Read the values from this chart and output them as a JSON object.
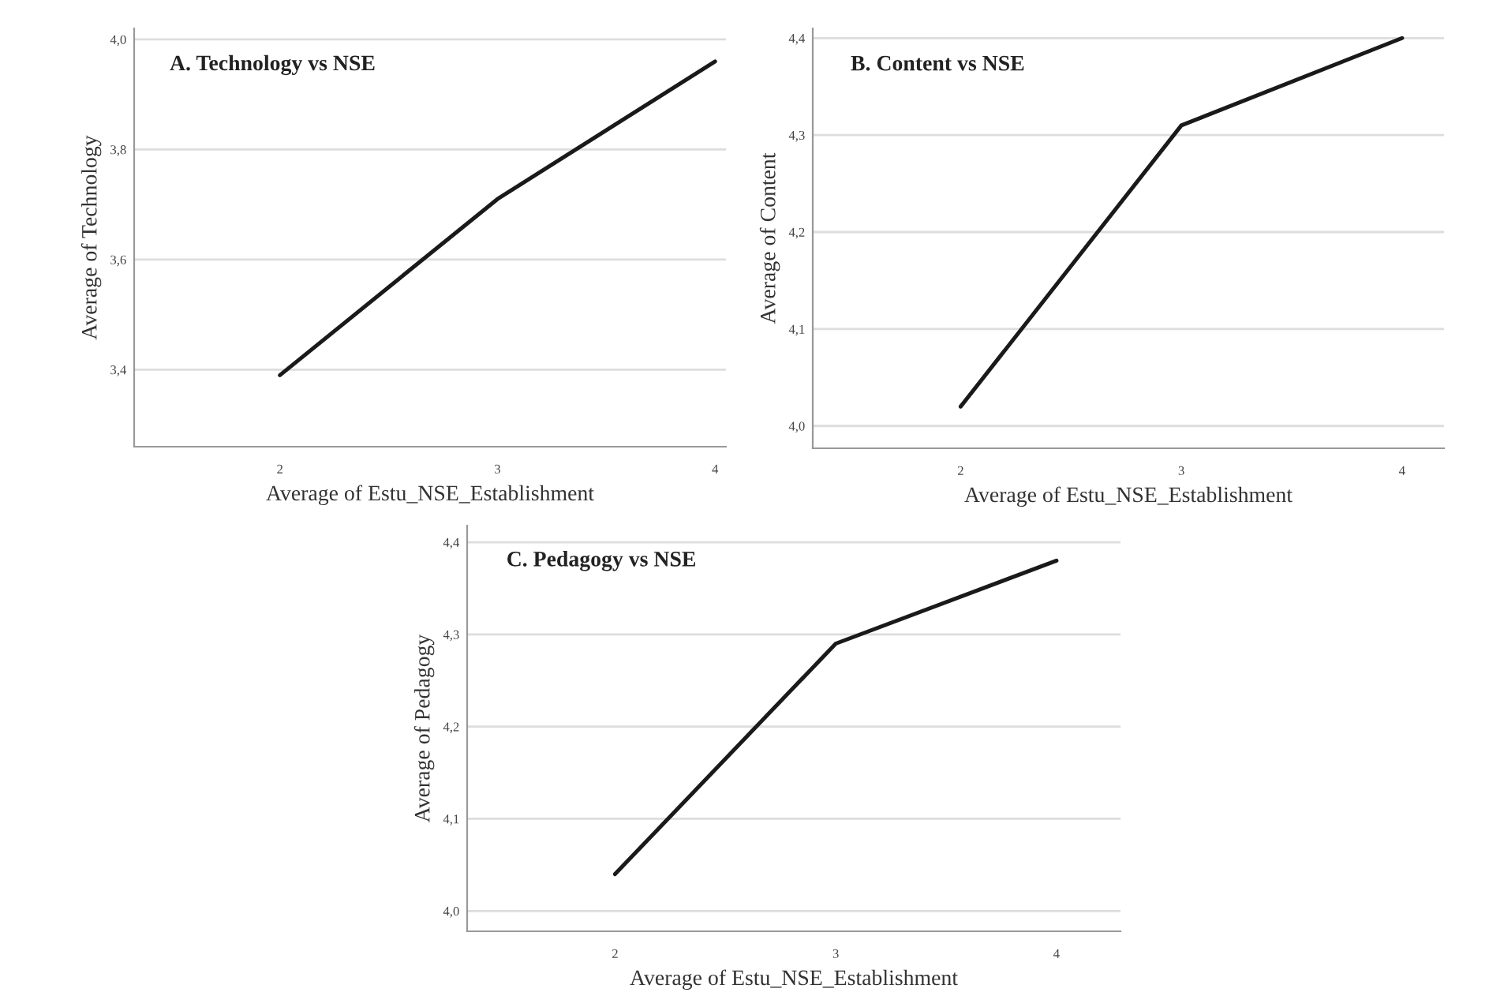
{
  "chart_data": [
    {
      "type": "line",
      "title": "A. Technology vs NSE",
      "xlabel": "Average of Estu_NSE_Establishment",
      "ylabel": "Average of Technology",
      "x": [
        2,
        3,
        4
      ],
      "series": [
        {
          "color": "#1a1a1a",
          "values": [
            3.39,
            3.71,
            3.96
          ]
        }
      ],
      "xlim": [
        1.33,
        4.05
      ],
      "ylim": [
        3.26,
        4.02
      ],
      "xticks": [
        2,
        3,
        4
      ],
      "yticks": [
        {
          "value": 3.4,
          "label": "3,4"
        },
        {
          "value": 3.6,
          "label": "3,6"
        },
        {
          "value": 3.8,
          "label": "3,8"
        },
        {
          "value": 4.0,
          "label": "4,0"
        }
      ],
      "grid": "y"
    },
    {
      "type": "line",
      "title": "B. Content vs NSE",
      "xlabel": "Average of Estu_NSE_Establishment",
      "ylabel": "Average of Content",
      "x": [
        2,
        3,
        4
      ],
      "series": [
        {
          "color": "#1a1a1a",
          "values": [
            4.02,
            4.31,
            4.4
          ]
        }
      ],
      "xlim": [
        1.33,
        4.19
      ],
      "ylim": [
        3.977,
        4.41
      ],
      "xticks": [
        2,
        3,
        4
      ],
      "yticks": [
        {
          "value": 4.0,
          "label": "4,0"
        },
        {
          "value": 4.1,
          "label": "4,1"
        },
        {
          "value": 4.2,
          "label": "4,2"
        },
        {
          "value": 4.3,
          "label": "4,3"
        },
        {
          "value": 4.4,
          "label": "4,4"
        }
      ],
      "grid": "y"
    },
    {
      "type": "line",
      "title": "C. Pedagogy vs NSE",
      "xlabel": "Average of Estu_NSE_Establishment",
      "ylabel": "Average of Pedagogy",
      "x": [
        2,
        3,
        4
      ],
      "series": [
        {
          "color": "#1a1a1a",
          "values": [
            4.04,
            4.29,
            4.38
          ]
        }
      ],
      "xlim": [
        1.33,
        4.29
      ],
      "ylim": [
        3.978,
        4.418
      ],
      "xticks": [
        2,
        3,
        4
      ],
      "yticks": [
        {
          "value": 4.0,
          "label": "4,0"
        },
        {
          "value": 4.1,
          "label": "4,1"
        },
        {
          "value": 4.2,
          "label": "4,2"
        },
        {
          "value": 4.3,
          "label": "4,3"
        },
        {
          "value": 4.4,
          "label": "4,4"
        }
      ],
      "grid": "y"
    }
  ]
}
